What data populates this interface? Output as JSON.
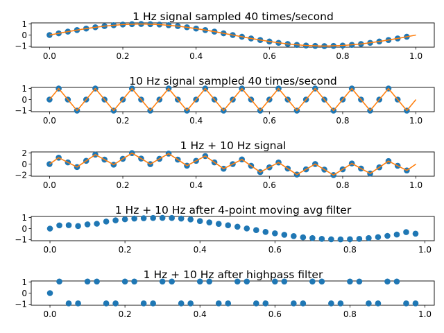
{
  "chart_data": [
    {
      "type": "line",
      "title": "1 Hz signal sampled 40 times/second",
      "colors": {
        "samples": "#1f77b4",
        "curve": "#ff7f0e"
      },
      "xlim": [
        -0.05,
        1.05
      ],
      "ylim": [
        -1.1,
        1.1
      ],
      "xticks": [
        0.0,
        0.2,
        0.4,
        0.6,
        0.8,
        1.0
      ],
      "xtick_labels": [
        "0.0",
        "0.2",
        "0.4",
        "0.6",
        "0.8",
        "1.0"
      ],
      "yticks": [
        1,
        0,
        -1
      ],
      "ytick_labels": [
        "1",
        "0",
        "−1"
      ],
      "series": [
        {
          "kind": "scatter",
          "x": [
            0.0,
            0.025,
            0.05,
            0.075,
            0.1,
            0.125,
            0.15,
            0.175,
            0.2,
            0.225,
            0.25,
            0.275,
            0.3,
            0.325,
            0.35,
            0.375,
            0.4,
            0.425,
            0.45,
            0.475,
            0.5,
            0.525,
            0.55,
            0.575,
            0.6,
            0.625,
            0.65,
            0.675,
            0.7,
            0.725,
            0.75,
            0.775,
            0.8,
            0.825,
            0.85,
            0.875,
            0.9,
            0.925,
            0.95,
            0.975
          ],
          "y": [
            0.0,
            0.156,
            0.309,
            0.454,
            0.588,
            0.707,
            0.809,
            0.891,
            0.951,
            0.988,
            1.0,
            0.988,
            0.951,
            0.891,
            0.809,
            0.707,
            0.588,
            0.454,
            0.309,
            0.156,
            0.0,
            -0.156,
            -0.309,
            -0.454,
            -0.588,
            -0.707,
            -0.809,
            -0.891,
            -0.951,
            -0.988,
            -1.0,
            -0.988,
            -0.951,
            -0.891,
            -0.809,
            -0.707,
            -0.588,
            -0.454,
            -0.309,
            -0.156
          ]
        },
        {
          "kind": "line",
          "x": [
            0.0,
            0.05,
            0.1,
            0.15,
            0.2,
            0.25,
            0.3,
            0.35,
            0.4,
            0.45,
            0.5,
            0.55,
            0.6,
            0.65,
            0.7,
            0.75,
            0.8,
            0.85,
            0.9,
            0.95,
            1.0
          ],
          "y": [
            0.0,
            0.309,
            0.588,
            0.809,
            0.951,
            1.0,
            0.951,
            0.809,
            0.588,
            0.309,
            0.0,
            -0.309,
            -0.588,
            -0.809,
            -0.951,
            -1.0,
            -0.951,
            -0.809,
            -0.588,
            -0.309,
            0.0
          ]
        }
      ]
    },
    {
      "type": "line",
      "title": "10 Hz signal sampled 40 times/second",
      "colors": {
        "samples": "#1f77b4",
        "curve": "#ff7f0e"
      },
      "xlim": [
        -0.05,
        1.05
      ],
      "ylim": [
        -1.1,
        1.1
      ],
      "xticks": [
        0.0,
        0.2,
        0.4,
        0.6,
        0.8,
        1.0
      ],
      "xtick_labels": [
        "0.0",
        "0.2",
        "0.4",
        "0.6",
        "0.8",
        "1.0"
      ],
      "yticks": [
        1,
        0,
        -1
      ],
      "ytick_labels": [
        "1",
        "0",
        "−1"
      ],
      "series": [
        {
          "kind": "scatter",
          "x": [
            0.0,
            0.025,
            0.05,
            0.075,
            0.1,
            0.125,
            0.15,
            0.175,
            0.2,
            0.225,
            0.25,
            0.275,
            0.3,
            0.325,
            0.35,
            0.375,
            0.4,
            0.425,
            0.45,
            0.475,
            0.5,
            0.525,
            0.55,
            0.575,
            0.6,
            0.625,
            0.65,
            0.675,
            0.7,
            0.725,
            0.75,
            0.775,
            0.8,
            0.825,
            0.85,
            0.875,
            0.9,
            0.925,
            0.95,
            0.975
          ],
          "y": [
            0,
            1,
            0,
            -1,
            0,
            1,
            0,
            -1,
            0,
            1,
            0,
            -1,
            0,
            1,
            0,
            -1,
            0,
            1,
            0,
            -1,
            0,
            1,
            0,
            -1,
            0,
            1,
            0,
            -1,
            0,
            1,
            0,
            -1,
            0,
            1,
            0,
            -1,
            0,
            1,
            0,
            -1
          ]
        },
        {
          "kind": "line",
          "x": [
            0.0,
            0.025,
            0.05,
            0.075,
            0.1,
            0.125,
            0.15,
            0.175,
            0.2,
            0.225,
            0.25,
            0.275,
            0.3,
            0.325,
            0.35,
            0.375,
            0.4,
            0.425,
            0.45,
            0.475,
            0.5,
            0.525,
            0.55,
            0.575,
            0.6,
            0.625,
            0.65,
            0.675,
            0.7,
            0.725,
            0.75,
            0.775,
            0.8,
            0.825,
            0.85,
            0.875,
            0.9,
            0.925,
            0.95,
            0.975,
            1.0
          ],
          "y": [
            0,
            1,
            0,
            -1,
            0,
            1,
            0,
            -1,
            0,
            1,
            0,
            -1,
            0,
            1,
            0,
            -1,
            0,
            1,
            0,
            -1,
            0,
            1,
            0,
            -1,
            0,
            1,
            0,
            -1,
            0,
            1,
            0,
            -1,
            0,
            1,
            0,
            -1,
            0,
            1,
            0,
            -1,
            0
          ]
        }
      ]
    },
    {
      "type": "line",
      "title": "1 Hz + 10 Hz signal",
      "colors": {
        "samples": "#1f77b4",
        "curve": "#ff7f0e"
      },
      "xlim": [
        -0.05,
        1.05
      ],
      "ylim": [
        -2.2,
        2.2
      ],
      "xticks": [
        0.0,
        0.2,
        0.4,
        0.6,
        0.8,
        1.0
      ],
      "xtick_labels": [
        "0.0",
        "0.2",
        "0.4",
        "0.6",
        "0.8",
        "1.0"
      ],
      "yticks": [
        2,
        0,
        -2
      ],
      "ytick_labels": [
        "2",
        "0",
        "−2"
      ],
      "series": [
        {
          "kind": "scatter",
          "x": [
            0.0,
            0.025,
            0.05,
            0.075,
            0.1,
            0.125,
            0.15,
            0.175,
            0.2,
            0.225,
            0.25,
            0.275,
            0.3,
            0.325,
            0.35,
            0.375,
            0.4,
            0.425,
            0.45,
            0.475,
            0.5,
            0.525,
            0.55,
            0.575,
            0.6,
            0.625,
            0.65,
            0.675,
            0.7,
            0.725,
            0.75,
            0.775,
            0.8,
            0.825,
            0.85,
            0.875,
            0.9,
            0.925,
            0.95,
            0.975
          ],
          "y": [
            0.0,
            1.156,
            0.309,
            -0.546,
            0.588,
            1.707,
            0.809,
            -0.109,
            0.951,
            1.988,
            1.0,
            -0.012,
            0.951,
            1.891,
            0.809,
            -0.293,
            0.588,
            1.454,
            0.309,
            -0.844,
            0.0,
            0.844,
            -0.309,
            -1.454,
            -0.588,
            0.293,
            -0.809,
            -1.891,
            -0.951,
            0.012,
            -1.0,
            -1.988,
            -0.951,
            0.109,
            -0.809,
            -1.707,
            -0.588,
            0.546,
            -0.309,
            -1.156
          ]
        },
        {
          "kind": "line",
          "x": [
            0.0,
            0.025,
            0.05,
            0.075,
            0.1,
            0.125,
            0.15,
            0.175,
            0.2,
            0.225,
            0.25,
            0.275,
            0.3,
            0.325,
            0.35,
            0.375,
            0.4,
            0.425,
            0.45,
            0.475,
            0.5,
            0.525,
            0.55,
            0.575,
            0.6,
            0.625,
            0.65,
            0.675,
            0.7,
            0.725,
            0.75,
            0.775,
            0.8,
            0.825,
            0.85,
            0.875,
            0.9,
            0.925,
            0.95,
            0.975,
            1.0
          ],
          "y": [
            0.0,
            1.156,
            0.309,
            -0.546,
            0.588,
            1.707,
            0.809,
            -0.109,
            0.951,
            1.988,
            1.0,
            -0.012,
            0.951,
            1.891,
            0.809,
            -0.293,
            0.588,
            1.454,
            0.309,
            -0.844,
            0.0,
            0.844,
            -0.309,
            -1.454,
            -0.588,
            0.293,
            -0.809,
            -1.891,
            -0.951,
            0.012,
            -1.0,
            -1.988,
            -0.951,
            0.109,
            -0.809,
            -1.707,
            -0.588,
            0.546,
            -0.309,
            -1.156,
            0.0
          ]
        }
      ]
    },
    {
      "type": "scatter",
      "title": "1 Hz + 10 Hz after 4-point moving avg filter",
      "colors": {
        "samples": "#1f77b4"
      },
      "xlim": [
        -0.05,
        1.025
      ],
      "ylim": [
        -1.1,
        1.1
      ],
      "xticks": [
        0.0,
        0.2,
        0.4,
        0.6,
        0.8,
        1.0
      ],
      "xtick_labels": [
        "0.0",
        "0.2",
        "0.4",
        "0.6",
        "0.8",
        "1.0"
      ],
      "yticks": [
        1,
        0,
        -1
      ],
      "ytick_labels": [
        "1",
        "0",
        "−1"
      ],
      "series": [
        {
          "kind": "scatter",
          "x": [
            0.0,
            0.025,
            0.05,
            0.075,
            0.1,
            0.125,
            0.15,
            0.175,
            0.2,
            0.225,
            0.25,
            0.275,
            0.3,
            0.325,
            0.35,
            0.375,
            0.4,
            0.425,
            0.45,
            0.475,
            0.5,
            0.525,
            0.55,
            0.575,
            0.6,
            0.625,
            0.65,
            0.675,
            0.7,
            0.725,
            0.75,
            0.775,
            0.8,
            0.825,
            0.85,
            0.875,
            0.9,
            0.925,
            0.95,
            0.975
          ],
          "y": [
            0.0,
            0.29,
            0.31,
            0.23,
            0.38,
            0.44,
            0.64,
            0.75,
            0.84,
            0.91,
            0.94,
            0.96,
            0.97,
            0.96,
            0.91,
            0.83,
            0.68,
            0.56,
            0.43,
            0.3,
            0.17,
            0.01,
            -0.14,
            -0.3,
            -0.43,
            -0.56,
            -0.68,
            -0.79,
            -0.86,
            -0.93,
            -0.97,
            -0.98,
            -0.96,
            -0.93,
            -0.86,
            -0.77,
            -0.66,
            -0.54,
            -0.32,
            -0.46
          ]
        }
      ]
    },
    {
      "type": "scatter",
      "title": "1 Hz + 10 Hz after highpass filter",
      "colors": {
        "samples": "#1f77b4"
      },
      "xlim": [
        -0.05,
        1.025
      ],
      "ylim": [
        -1.1,
        1.1
      ],
      "xticks": [
        0.0,
        0.2,
        0.4,
        0.6,
        0.8,
        1.0
      ],
      "xtick_labels": [
        "0.0",
        "0.2",
        "0.4",
        "0.6",
        "0.8",
        "1.0"
      ],
      "yticks": [
        1,
        0,
        -1
      ],
      "ytick_labels": [
        "1",
        "0",
        "−1"
      ],
      "series": [
        {
          "kind": "scatter",
          "x": [
            0.0,
            0.025,
            0.05,
            0.075,
            0.1,
            0.125,
            0.15,
            0.175,
            0.2,
            0.225,
            0.25,
            0.275,
            0.3,
            0.325,
            0.35,
            0.375,
            0.4,
            0.425,
            0.45,
            0.475,
            0.5,
            0.525,
            0.55,
            0.575,
            0.6,
            0.625,
            0.65,
            0.675,
            0.7,
            0.725,
            0.75,
            0.775,
            0.8,
            0.825,
            0.85,
            0.875,
            0.9,
            0.925,
            0.95,
            0.975
          ],
          "y": [
            0.0,
            1.05,
            -0.93,
            -0.93,
            1.05,
            1.05,
            -0.93,
            -0.93,
            1.05,
            1.05,
            -0.93,
            -0.93,
            1.05,
            1.05,
            -0.93,
            -0.93,
            1.05,
            1.05,
            -0.93,
            -0.93,
            1.05,
            1.05,
            -0.93,
            -0.93,
            1.05,
            1.05,
            -0.93,
            -0.93,
            1.05,
            1.05,
            -0.93,
            -0.93,
            1.05,
            1.05,
            -0.93,
            -0.93,
            1.05,
            1.05,
            -0.93,
            -0.93
          ]
        }
      ]
    }
  ]
}
